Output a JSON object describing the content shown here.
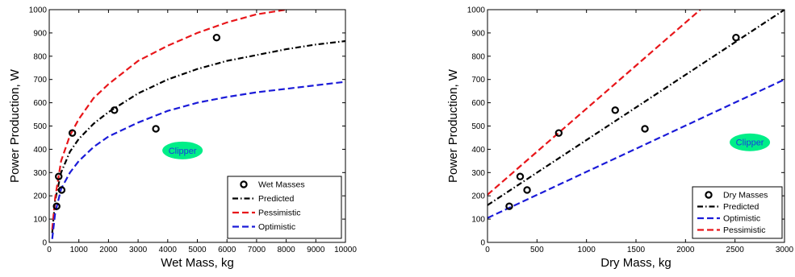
{
  "chart_data": [
    {
      "type": "line",
      "xlabel": "Wet Mass, kg",
      "ylabel": "Power Production, W",
      "xlim": [
        0,
        10000
      ],
      "ylim": [
        0,
        1000
      ],
      "xticks": [
        0,
        1000,
        2000,
        3000,
        4000,
        5000,
        6000,
        7000,
        8000,
        9000,
        10000
      ],
      "yticks": [
        0,
        100,
        200,
        300,
        400,
        500,
        600,
        700,
        800,
        900,
        1000
      ],
      "xtick_labels": [
        "0",
        "1000",
        "2000",
        "3000",
        "4000",
        "5000",
        "6000",
        "7000",
        "8000",
        "9000",
        "10000"
      ],
      "ytick_labels": [
        "0",
        "100",
        "200",
        "300",
        "400",
        "500",
        "600",
        "700",
        "800",
        "900",
        "1000"
      ],
      "grid": false,
      "legend_position": "bottom-right",
      "annotation": {
        "text": "Clipper",
        "x": 4500,
        "y": 395,
        "color": "#00ee88",
        "text_color": "#1a3adf"
      },
      "series": [
        {
          "name": "Wet Masses",
          "kind": "markers",
          "color": "#000000",
          "x": [
            250,
            320,
            420,
            780,
            2200,
            3600,
            5650
          ],
          "y": [
            155,
            283,
            225,
            470,
            568,
            488,
            880
          ]
        },
        {
          "name": "Predicted",
          "kind": "line",
          "style": "dashdot",
          "color": "#000000",
          "x": [
            100,
            200,
            400,
            700,
            1000,
            1500,
            2000,
            3000,
            4000,
            5000,
            6000,
            7000,
            8000,
            9000,
            10000
          ],
          "y": [
            40,
            180,
            300,
            390,
            445,
            510,
            560,
            640,
            700,
            745,
            780,
            805,
            830,
            850,
            865
          ]
        },
        {
          "name": "Pessimistic",
          "kind": "line",
          "style": "dashed",
          "color": "#e8161a",
          "x": [
            100,
            200,
            400,
            700,
            1000,
            1500,
            2000,
            3000,
            4000,
            5000,
            6000,
            7000,
            8000,
            8300
          ],
          "y": [
            55,
            190,
            350,
            460,
            530,
            620,
            680,
            780,
            845,
            900,
            945,
            980,
            1000,
            1010
          ]
        },
        {
          "name": "Optimistic",
          "kind": "line",
          "style": "dashed",
          "color": "#1b1bd8",
          "x": [
            100,
            200,
            400,
            700,
            1000,
            1500,
            2000,
            3000,
            4000,
            5000,
            6000,
            7000,
            8000,
            9000,
            10000
          ],
          "y": [
            15,
            125,
            230,
            300,
            350,
            410,
            455,
            515,
            565,
            600,
            625,
            645,
            660,
            675,
            690
          ]
        }
      ]
    },
    {
      "type": "line",
      "xlabel": "Dry Mass, kg",
      "ylabel": "Power Production, W",
      "xlim": [
        0,
        3000
      ],
      "ylim": [
        0,
        1000
      ],
      "xticks": [
        0,
        500,
        1000,
        1500,
        2000,
        2500,
        3000
      ],
      "yticks": [
        0,
        100,
        200,
        300,
        400,
        500,
        600,
        700,
        800,
        900,
        1000
      ],
      "xtick_labels": [
        "0",
        "500",
        "1000",
        "1500",
        "2000",
        "2500",
        "3000"
      ],
      "ytick_labels": [
        "0",
        "100",
        "200",
        "300",
        "400",
        "500",
        "600",
        "700",
        "800",
        "900",
        "1000"
      ],
      "grid": false,
      "legend_position": "bottom-right",
      "annotation": {
        "text": "Clipper",
        "x": 2650,
        "y": 430,
        "color": "#00ee88",
        "text_color": "#1a3adf"
      },
      "series": [
        {
          "name": "Dry Masses",
          "kind": "markers",
          "color": "#000000",
          "x": [
            220,
            330,
            400,
            720,
            1290,
            1590,
            2510
          ],
          "y": [
            155,
            283,
            225,
            470,
            568,
            488,
            880
          ]
        },
        {
          "name": "Predicted",
          "kind": "line",
          "style": "dashdot",
          "color": "#000000",
          "x": [
            0,
            3000
          ],
          "y": [
            160,
            1000
          ]
        },
        {
          "name": "Optimistic",
          "kind": "line",
          "style": "dashed",
          "color": "#1b1bd8",
          "x": [
            0,
            3000
          ],
          "y": [
            105,
            700
          ]
        },
        {
          "name": "Pessimistic",
          "kind": "line",
          "style": "dashed",
          "color": "#e8161a",
          "x": [
            0,
            2150
          ],
          "y": [
            205,
            1000
          ]
        }
      ]
    }
  ]
}
